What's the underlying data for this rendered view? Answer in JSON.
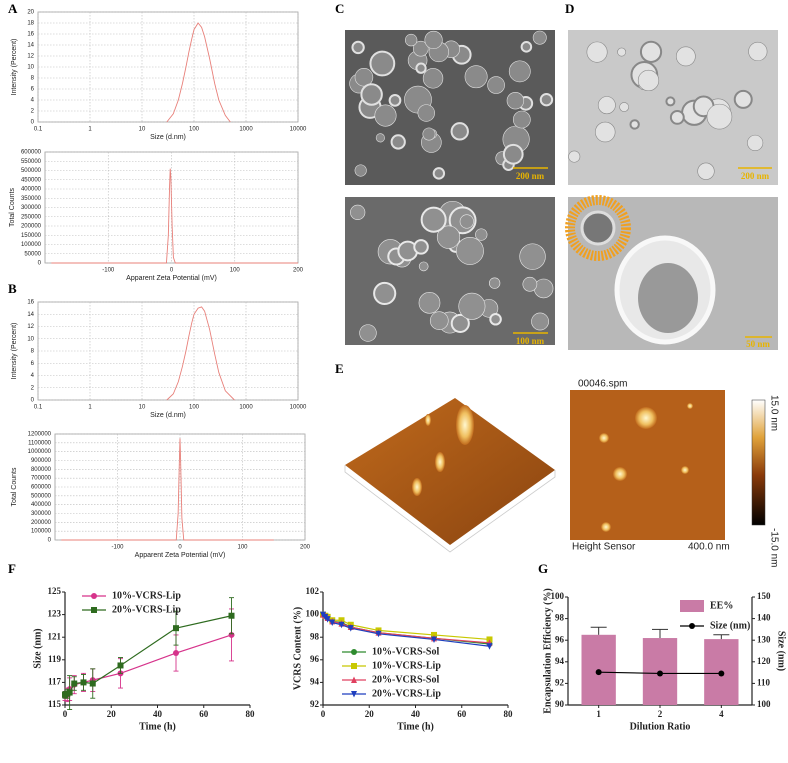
{
  "panel_labels": [
    "A",
    "B",
    "C",
    "D",
    "E",
    "F",
    "G"
  ],
  "images": {
    "C": {
      "scale_bars": [
        "200 nm",
        "100 nm"
      ]
    },
    "D": {
      "scale_bars": [
        "200 nm",
        "50 nm"
      ]
    },
    "E": {
      "file": "00046.spm",
      "channel": "Height Sensor",
      "scan_size": "400.0 nm",
      "colorbar_max": "15.0 nm",
      "colorbar_min": "-15.0 nm"
    }
  },
  "chart_data": [
    {
      "type": "line",
      "xlabel": "Size (d.nm)",
      "ylabel": "Intensity (Percent)",
      "log_x": true,
      "grid": true,
      "xlim": [
        0.1,
        10000
      ],
      "xticks": [
        0.1,
        1,
        10,
        100,
        1000,
        10000
      ],
      "ylim": [
        0,
        20
      ],
      "yticks": [
        0,
        2,
        4,
        6,
        8,
        10,
        12,
        14,
        16,
        18,
        20
      ],
      "series": [
        {
          "color": "#e8807a",
          "x": [
            30,
            40,
            50,
            60,
            70,
            80,
            90,
            100,
            120,
            140,
            160,
            200,
            250,
            300,
            400,
            500
          ],
          "values": [
            0,
            1.5,
            4,
            7,
            10,
            12.8,
            15,
            16.8,
            18,
            17.2,
            15.5,
            11.5,
            7,
            4,
            1.2,
            0
          ]
        }
      ]
    },
    {
      "type": "line",
      "xlabel": "Apparent Zeta Potential (mV)",
      "ylabel": "Total Counts",
      "grid": true,
      "xlim": [
        -200,
        200
      ],
      "xticks": [
        -100,
        0,
        100,
        200
      ],
      "ylim": [
        0,
        600000
      ],
      "yticks": [
        0,
        50000,
        100000,
        150000,
        200000,
        250000,
        300000,
        350000,
        400000,
        450000,
        500000,
        550000,
        600000
      ],
      "series": [
        {
          "color": "#e8807a",
          "x": [
            -190,
            -8,
            -5,
            -3,
            -2,
            -1,
            1,
            3,
            6,
            200
          ],
          "values": [
            0,
            0,
            150000,
            420000,
            510000,
            460000,
            200000,
            30000,
            0,
            0
          ]
        }
      ]
    },
    {
      "type": "line",
      "xlabel": "Size (d.nm)",
      "ylabel": "Intensity (Percent)",
      "log_x": true,
      "grid": true,
      "xlim": [
        0.1,
        10000
      ],
      "xticks": [
        0.1,
        1,
        10,
        100,
        1000,
        10000
      ],
      "ylim": [
        0,
        16
      ],
      "yticks": [
        0,
        2,
        4,
        6,
        8,
        10,
        12,
        14,
        16
      ],
      "series": [
        {
          "color": "#e8807a",
          "x": [
            30,
            40,
            50,
            60,
            70,
            80,
            90,
            100,
            120,
            140,
            160,
            200,
            250,
            300,
            400,
            600
          ],
          "values": [
            0,
            1,
            3,
            5.5,
            8,
            10.5,
            12.5,
            14,
            15,
            15.2,
            14.5,
            11.5,
            7.5,
            4.5,
            1.5,
            0
          ]
        }
      ]
    },
    {
      "type": "line",
      "xlabel": "Apparent Zeta Potential (mV)",
      "ylabel": "Total Counts",
      "grid": true,
      "xlim": [
        -200,
        200
      ],
      "xticks": [
        -100,
        0,
        100,
        200
      ],
      "ylim": [
        0,
        1200000
      ],
      "yticks": [
        0,
        100000,
        200000,
        300000,
        400000,
        500000,
        600000,
        700000,
        800000,
        900000,
        1000000,
        1100000,
        1200000
      ],
      "series": [
        {
          "color": "#e8807a",
          "x": [
            -190,
            -6,
            -3,
            -1,
            0,
            1,
            3,
            6,
            150
          ],
          "values": [
            0,
            0,
            300000,
            900000,
            1150000,
            900000,
            250000,
            0,
            0
          ]
        }
      ]
    },
    {
      "type": "line",
      "xlabel": "Time (h)",
      "ylabel": "Size (nm)",
      "grid": false,
      "xlim": [
        0,
        80
      ],
      "xticks": [
        0,
        20,
        40,
        60,
        80
      ],
      "ylim": [
        115,
        125
      ],
      "yticks": [
        115,
        117,
        119,
        121,
        123,
        125
      ],
      "series": [
        {
          "name": "10%-VCRS-Lip",
          "color": "#d6338b",
          "marker": "circle",
          "x": [
            0,
            1,
            2,
            4,
            8,
            12,
            24,
            48,
            72
          ],
          "values": [
            115.8,
            115.9,
            116.4,
            116.8,
            117.0,
            117.2,
            117.8,
            119.6,
            121.2
          ],
          "errors": [
            0.4,
            0.6,
            1.0,
            0.8,
            0.8,
            1.0,
            1.3,
            1.6,
            2.3
          ]
        },
        {
          "name": "20%-VCRS-Lip",
          "color": "#2e6b1f",
          "marker": "square",
          "x": [
            0,
            1,
            2,
            4,
            8,
            12,
            24,
            48,
            72
          ],
          "values": [
            115.9,
            116.0,
            116.1,
            116.9,
            117.0,
            116.9,
            118.5,
            121.8,
            122.9
          ],
          "errors": [
            0.3,
            0.4,
            1.5,
            0.6,
            0.7,
            1.3,
            0.7,
            1.5,
            1.6
          ]
        }
      ]
    },
    {
      "type": "line",
      "xlabel": "Time (h)",
      "ylabel": "VCRS Content (%)",
      "grid": false,
      "xlim": [
        0,
        80
      ],
      "xticks": [
        0,
        20,
        40,
        60,
        80
      ],
      "ylim": [
        92,
        102
      ],
      "yticks": [
        92,
        94,
        96,
        98,
        100,
        102
      ],
      "series": [
        {
          "name": "10%-VCRS-Sol",
          "color": "#2e8b2e",
          "marker": "circle",
          "x": [
            0,
            1,
            2,
            4,
            8,
            12,
            24,
            48,
            72
          ],
          "values": [
            100,
            99.9,
            99.7,
            99.4,
            99.3,
            98.9,
            98.4,
            97.9,
            97.4
          ]
        },
        {
          "name": "10%-VCRS-Lip",
          "color": "#c8c800",
          "marker": "square",
          "x": [
            0,
            1,
            2,
            4,
            8,
            12,
            24,
            48,
            72
          ],
          "values": [
            100,
            99.9,
            99.8,
            99.5,
            99.5,
            99.1,
            98.6,
            98.2,
            97.8
          ]
        },
        {
          "name": "20%-VCRS-Sol",
          "color": "#e04060",
          "marker": "triangle",
          "x": [
            0,
            1,
            2,
            4,
            8,
            12,
            24,
            48,
            72
          ],
          "values": [
            100,
            99.9,
            99.7,
            99.4,
            99.2,
            98.9,
            98.4,
            97.9,
            97.5
          ]
        },
        {
          "name": "20%-VCRS-Lip",
          "color": "#1f3fbf",
          "marker": "triangle-down",
          "x": [
            0,
            1,
            2,
            4,
            8,
            12,
            24,
            48,
            72
          ],
          "values": [
            100,
            99.8,
            99.6,
            99.3,
            99.1,
            98.8,
            98.3,
            97.8,
            97.2
          ]
        }
      ]
    },
    {
      "type": "bar",
      "xlabel": "Dilution Ratio",
      "ylabel": "Encapsulation Efficiency (%)",
      "y2label": "Size (nm)",
      "grid": false,
      "categories": [
        "1",
        "2",
        "4"
      ],
      "ylim": [
        90,
        100
      ],
      "yticks": [
        90,
        92,
        94,
        96,
        98,
        100
      ],
      "y2lim": [
        100,
        150
      ],
      "y2ticks": [
        100,
        110,
        120,
        130,
        140,
        150
      ],
      "series": [
        {
          "name": "EE%",
          "color": "#c97ba6",
          "values": [
            96.5,
            96.2,
            96.1
          ],
          "errors": [
            0.7,
            0.8,
            0.4
          ]
        },
        {
          "name": "Size (nm)",
          "color": "#000000",
          "axis": "y2",
          "marker": "circle",
          "values": [
            115.2,
            114.6,
            114.6
          ]
        }
      ]
    }
  ]
}
